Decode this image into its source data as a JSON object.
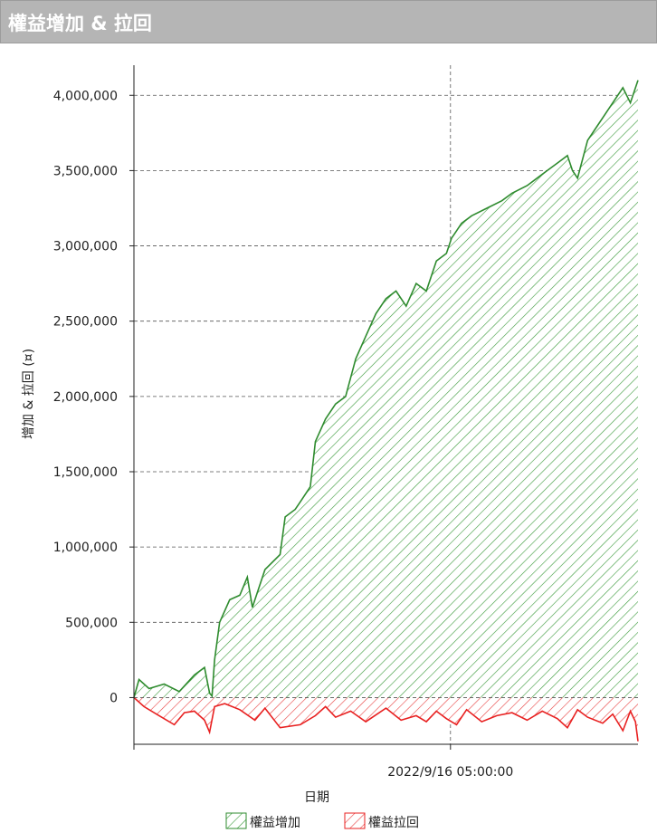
{
  "header": {
    "title": "權益增加 & 拉回"
  },
  "chart_data": {
    "type": "area",
    "title": "權益增加 & 拉回",
    "xlabel": "日期",
    "ylabel": "增加 & 拉回 (¤)",
    "ylim": [
      -310000,
      4200000
    ],
    "yticks": [
      0,
      500000,
      1000000,
      1500000,
      2000000,
      2500000,
      3000000,
      3500000,
      4000000
    ],
    "ytick_labels": [
      "0",
      "500,000",
      "1,000,000",
      "1,500,000",
      "2,000,000",
      "2,500,000",
      "3,000,000",
      "3,500,000",
      "4,000,000"
    ],
    "xtick_labels": [
      "2022/9/16 05:00:00"
    ],
    "xtick_position": 0.628,
    "grid": true,
    "legend_position": "bottom-center",
    "series": [
      {
        "name": "權益增加",
        "color": "#2e8b2e",
        "x": [
          0,
          0.01,
          0.03,
          0.06,
          0.09,
          0.12,
          0.14,
          0.15,
          0.155,
          0.16,
          0.17,
          0.19,
          0.21,
          0.225,
          0.235,
          0.26,
          0.29,
          0.3,
          0.32,
          0.33,
          0.35,
          0.36,
          0.38,
          0.4,
          0.42,
          0.44,
          0.46,
          0.48,
          0.5,
          0.52,
          0.54,
          0.56,
          0.58,
          0.6,
          0.62,
          0.63,
          0.64,
          0.65,
          0.67,
          0.7,
          0.73,
          0.75,
          0.78,
          0.8,
          0.82,
          0.84,
          0.86,
          0.87,
          0.88,
          0.9,
          0.92,
          0.95,
          0.97,
          0.985,
          1.0
        ],
        "values": [
          0,
          120000,
          60000,
          90000,
          40000,
          150000,
          200000,
          30000,
          10000,
          250000,
          500000,
          650000,
          680000,
          800000,
          600000,
          850000,
          950000,
          1200000,
          1250000,
          1300000,
          1400000,
          1700000,
          1850000,
          1950000,
          2000000,
          2250000,
          2400000,
          2550000,
          2650000,
          2700000,
          2600000,
          2750000,
          2700000,
          2900000,
          2950000,
          3050000,
          3100000,
          3150000,
          3200000,
          3250000,
          3300000,
          3350000,
          3400000,
          3450000,
          3500000,
          3550000,
          3600000,
          3500000,
          3450000,
          3700000,
          3800000,
          3950000,
          4050000,
          3950000,
          4100000
        ]
      },
      {
        "name": "權益拉回",
        "color": "#e82020",
        "x": [
          0,
          0.02,
          0.05,
          0.08,
          0.1,
          0.12,
          0.14,
          0.15,
          0.16,
          0.18,
          0.21,
          0.24,
          0.26,
          0.29,
          0.33,
          0.36,
          0.38,
          0.4,
          0.43,
          0.46,
          0.5,
          0.53,
          0.56,
          0.58,
          0.6,
          0.62,
          0.64,
          0.66,
          0.69,
          0.72,
          0.75,
          0.78,
          0.81,
          0.84,
          0.86,
          0.88,
          0.9,
          0.93,
          0.95,
          0.97,
          0.985,
          0.995,
          1.0
        ],
        "values": [
          0,
          -60000,
          -120000,
          -180000,
          -100000,
          -90000,
          -150000,
          -230000,
          -60000,
          -40000,
          -80000,
          -150000,
          -70000,
          -200000,
          -180000,
          -120000,
          -60000,
          -130000,
          -90000,
          -160000,
          -70000,
          -150000,
          -120000,
          -160000,
          -90000,
          -140000,
          -180000,
          -80000,
          -160000,
          -120000,
          -100000,
          -150000,
          -90000,
          -140000,
          -200000,
          -80000,
          -130000,
          -170000,
          -110000,
          -220000,
          -90000,
          -160000,
          -290000
        ]
      }
    ]
  }
}
